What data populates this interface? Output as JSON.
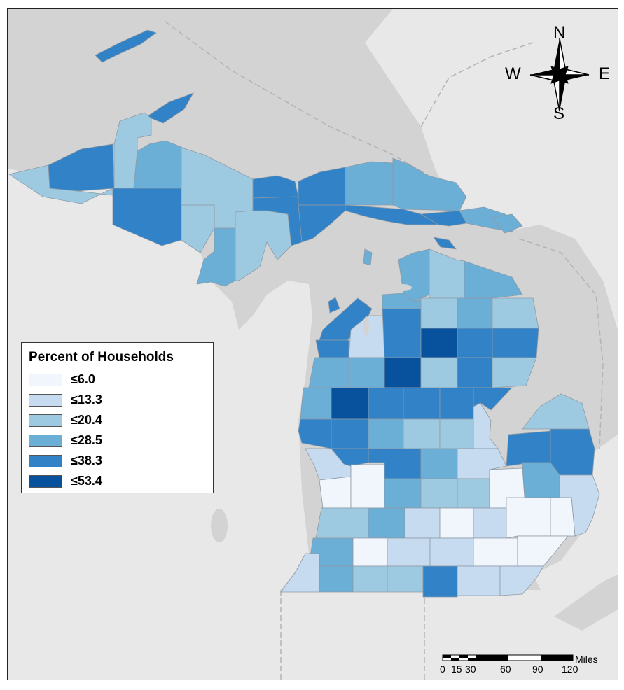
{
  "legend": {
    "title": "Percent of Households",
    "classes": [
      {
        "label": "≤6.0",
        "color": "#f1f5fc"
      },
      {
        "label": "≤13.3",
        "color": "#c6dbef"
      },
      {
        "label": "≤20.4",
        "color": "#9ecae1"
      },
      {
        "label": "≤28.5",
        "color": "#6baed6"
      },
      {
        "label": "≤38.3",
        "color": "#3182c6"
      },
      {
        "label": "≤53.4",
        "color": "#08519c"
      }
    ]
  },
  "compass": {
    "north": "N",
    "south": "S",
    "east": "E",
    "west": "W"
  },
  "scale": {
    "unit": "Miles",
    "ticks": [
      "0",
      "15",
      "30",
      "60",
      "90",
      "120"
    ]
  },
  "colors": {
    "water": "#d3d3d3",
    "neighbor_land": "#e8e8e8",
    "border_line": "#b4b4b4"
  }
}
